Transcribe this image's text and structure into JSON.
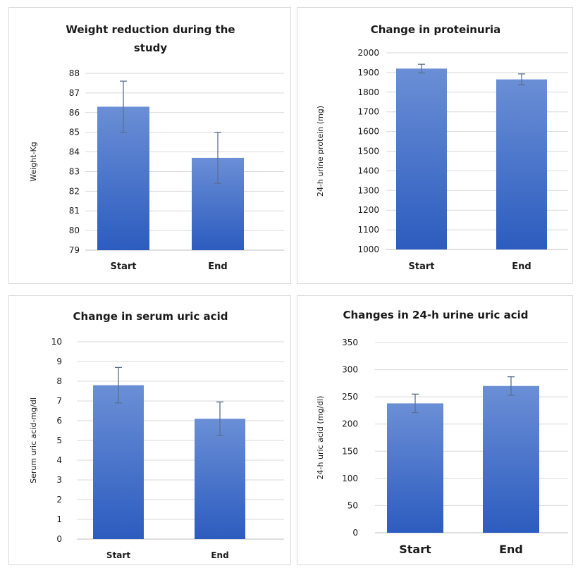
{
  "bar_gradient": {
    "top": "#6b8fd6",
    "bottom": "#2c5cbf"
  },
  "chart_data": [
    {
      "type": "bar",
      "title": [
        "Weight reduction during the",
        "study"
      ],
      "ylabel": "Weight-Kg",
      "categories": [
        "Start",
        "End"
      ],
      "values": [
        86.3,
        83.7
      ],
      "errors": [
        1.3,
        1.3
      ],
      "ylim": [
        79,
        88
      ],
      "yticks": [
        79,
        80,
        81,
        82,
        83,
        84,
        85,
        86,
        87,
        88
      ],
      "grid": true
    },
    {
      "type": "bar",
      "title": [
        "Change in proteinuria"
      ],
      "ylabel": "24-h urine protein (mg)",
      "categories": [
        "Start",
        "End"
      ],
      "values": [
        1920,
        1865
      ],
      "errors": [
        22,
        28
      ],
      "ylim": [
        1000,
        2000
      ],
      "yticks": [
        1000,
        1100,
        1200,
        1300,
        1400,
        1500,
        1600,
        1700,
        1800,
        1900,
        2000
      ],
      "grid": true
    },
    {
      "type": "bar",
      "title": [
        "Change in serum uric acid"
      ],
      "ylabel": "Serum uric acid-mg/dl",
      "categories": [
        "Start",
        "End"
      ],
      "values": [
        7.8,
        6.1
      ],
      "errors": [
        0.9,
        0.85
      ],
      "ylim": [
        0,
        10
      ],
      "yticks": [
        0,
        1,
        2,
        3,
        4,
        5,
        6,
        7,
        8,
        9,
        10
      ],
      "grid": true
    },
    {
      "type": "bar",
      "title": [
        "Changes in 24-h urine uric acid"
      ],
      "ylabel": "24-h uric acid (mg/dl)",
      "categories": [
        "Start",
        "End"
      ],
      "values": [
        238,
        270
      ],
      "errors": [
        17,
        17
      ],
      "ylim": [
        0,
        350
      ],
      "yticks": [
        0,
        50,
        100,
        150,
        200,
        250,
        300,
        350
      ],
      "grid": true
    }
  ]
}
